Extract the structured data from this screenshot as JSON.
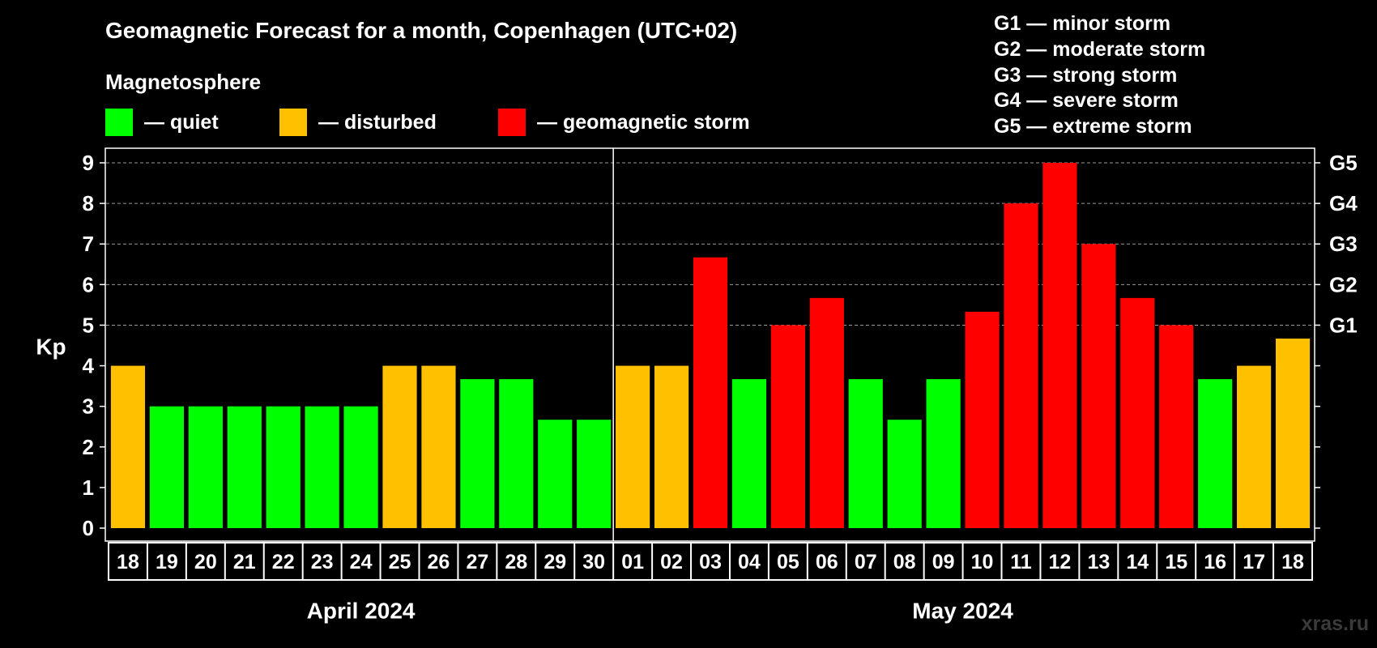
{
  "header": {
    "title": "Geomagnetic Forecast for a month, Copenhagen (UTC+02)",
    "subtitle": "Magnetosphere"
  },
  "legend": [
    {
      "label": "— quiet",
      "color": "#00ff00"
    },
    {
      "label": "— disturbed",
      "color": "#ffc000"
    },
    {
      "label": "— geomagnetic storm",
      "color": "#ff0000"
    }
  ],
  "storm_levels": [
    "G1 — minor storm",
    "G2 — moderate storm",
    "G3 — strong storm",
    "G4 — severe storm",
    "G5 — extreme storm"
  ],
  "watermark": "xras.ru",
  "chart_data": {
    "type": "bar",
    "ylabel": "Kp",
    "ylim": [
      0,
      9
    ],
    "yticks": [
      "0",
      "1",
      "2",
      "3",
      "4",
      "5",
      "6",
      "7",
      "8",
      "9"
    ],
    "right_axis": [
      {
        "value": 5,
        "label": "G1"
      },
      {
        "value": 6,
        "label": "G2"
      },
      {
        "value": 7,
        "label": "G3"
      },
      {
        "value": 8,
        "label": "G4"
      },
      {
        "value": 9,
        "label": "G5"
      }
    ],
    "grid": "dashed horizontal",
    "categories": [
      "18",
      "19",
      "20",
      "21",
      "22",
      "23",
      "24",
      "25",
      "26",
      "27",
      "28",
      "29",
      "30",
      "01",
      "02",
      "03",
      "04",
      "05",
      "06",
      "07",
      "08",
      "09",
      "10",
      "11",
      "12",
      "13",
      "14",
      "15",
      "16",
      "17",
      "18"
    ],
    "values": [
      4,
      3,
      3,
      3,
      3,
      3,
      3,
      4,
      4,
      3.67,
      3.67,
      2.67,
      2.67,
      4,
      4,
      6.67,
      3.67,
      5,
      5.67,
      3.67,
      2.67,
      3.67,
      5.33,
      8,
      9,
      7,
      5.67,
      5,
      3.67,
      4,
      4.67
    ],
    "status": [
      "disturbed",
      "quiet",
      "quiet",
      "quiet",
      "quiet",
      "quiet",
      "quiet",
      "disturbed",
      "disturbed",
      "quiet",
      "quiet",
      "quiet",
      "quiet",
      "disturbed",
      "disturbed",
      "storm",
      "quiet",
      "storm",
      "storm",
      "quiet",
      "quiet",
      "quiet",
      "storm",
      "storm",
      "storm",
      "storm",
      "storm",
      "storm",
      "quiet",
      "disturbed",
      "disturbed"
    ],
    "colors": {
      "quiet": "#00ff00",
      "disturbed": "#ffc000",
      "storm": "#ff0000"
    },
    "months": [
      {
        "label": "April 2024",
        "count": 13
      },
      {
        "label": "May 2024",
        "count": 18
      }
    ]
  }
}
